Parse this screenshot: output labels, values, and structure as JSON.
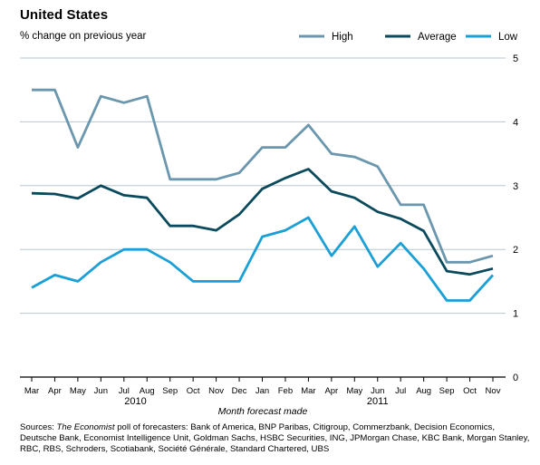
{
  "title": "United States",
  "subtitle": "% change on previous year",
  "source": {
    "prefix": "Sources: ",
    "publication": "The Economist",
    "rest": " poll of forecasters: Bank of America, BNP Paribas, Citigroup, Commerzbank, Decision Economics, Deutsche Bank, Economist Intelligence Unit, Goldman Sachs, HSBC Securities, ING, JPMorgan Chase, KBC Bank, Morgan Stanley, RBC, RBS, Schroders, Scotiabank, Société Générale, Standard Chartered, UBS"
  },
  "colors": {
    "high": "#6b97ae",
    "average": "#0a4a5c",
    "low": "#1aa0d6",
    "grid": "#b7c7d1",
    "axis": "#000000"
  },
  "chart_data": {
    "type": "line",
    "title": "United States",
    "subtitle": "% change on previous year",
    "xlabel": "Month forecast made",
    "ylabel": "",
    "categories": [
      "Mar",
      "Apr",
      "May",
      "Jun",
      "Jul",
      "Aug",
      "Sep",
      "Oct",
      "Nov",
      "Dec",
      "Jan",
      "Feb",
      "Mar",
      "Apr",
      "May",
      "Jun",
      "Jul",
      "Aug",
      "Sep",
      "Oct",
      "Nov"
    ],
    "year_labels": [
      {
        "label": "2010",
        "at_category": 4.5
      },
      {
        "label": "2011",
        "at_category": 15
      }
    ],
    "ylim": [
      0,
      5
    ],
    "yticks": [
      "0",
      "1",
      "2",
      "3",
      "4",
      "5"
    ],
    "grid": true,
    "y_axis_side": "right",
    "legend_position": "top-right",
    "series": [
      {
        "name": "High",
        "color_key": "high",
        "values": [
          4.5,
          4.5,
          3.6,
          4.4,
          4.3,
          4.4,
          3.1,
          3.1,
          3.1,
          3.2,
          3.6,
          3.6,
          3.95,
          3.5,
          3.45,
          3.3,
          2.7,
          2.7,
          1.8,
          1.8,
          1.9
        ]
      },
      {
        "name": "Average",
        "color_key": "average",
        "values": [
          2.88,
          2.87,
          2.8,
          3.0,
          2.85,
          2.81,
          2.37,
          2.37,
          2.3,
          2.55,
          2.95,
          3.12,
          3.26,
          2.91,
          2.81,
          2.59,
          2.48,
          2.29,
          1.66,
          1.61,
          1.7
        ]
      },
      {
        "name": "Low",
        "color_key": "low",
        "values": [
          1.4,
          1.6,
          1.5,
          1.8,
          2.0,
          2.0,
          1.8,
          1.5,
          1.5,
          1.5,
          2.2,
          2.3,
          2.5,
          1.9,
          2.36,
          1.73,
          2.1,
          1.7,
          1.2,
          1.2,
          1.6
        ]
      }
    ]
  }
}
